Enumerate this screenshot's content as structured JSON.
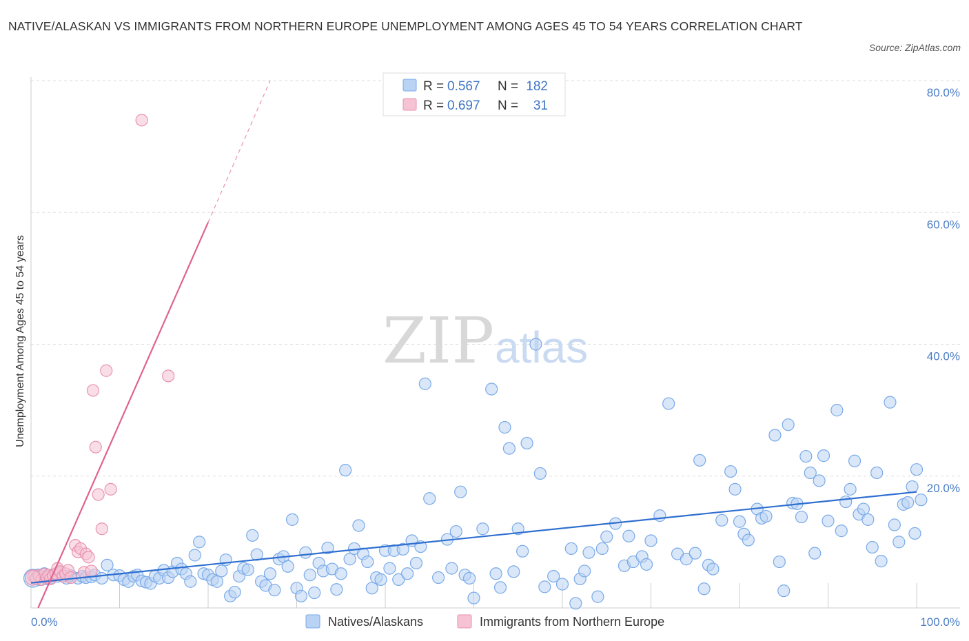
{
  "title": "NATIVE/ALASKAN VS IMMIGRANTS FROM NORTHERN EUROPE UNEMPLOYMENT AMONG AGES 45 TO 54 YEARS CORRELATION CHART",
  "source": "Source: ZipAtlas.com",
  "watermark": {
    "zip": "ZIP",
    "atlas": "atlas"
  },
  "colors": {
    "blue": "#7aaae8",
    "blue_fill": "#b9d3f4",
    "blue_line": "#2e6fd0",
    "pink": "#e892ae",
    "pink_fill": "#f6c3d4",
    "pink_line": "#e0628e",
    "grid": "#dddddd",
    "axis_text": "#4a7cc4"
  },
  "legend": {
    "items": [
      {
        "r_label": "R = ",
        "r_value": "0.567",
        "n_label": "N = ",
        "n_value": "182"
      },
      {
        "r_label": "R = ",
        "r_value": "0.697",
        "n_label": "N = ",
        "n_value": "31"
      }
    ]
  },
  "chart_data": {
    "type": "scatter",
    "title": "NATIVE/ALASKAN VS IMMIGRANTS FROM NORTHERN EUROPE UNEMPLOYMENT AMONG AGES 45 TO 54 YEARS CORRELATION CHART",
    "xlabel": "",
    "ylabel": "Unemployment Among Ages 45 to 54 years",
    "xlim": [
      0,
      100
    ],
    "ylim": [
      0,
      80
    ],
    "x_tick_labels": [
      "0.0%",
      "100.0%"
    ],
    "y_tick_labels": [
      "20.0%",
      "40.0%",
      "60.0%",
      "80.0%"
    ],
    "y_ticks": [
      20,
      40,
      60,
      80
    ],
    "grid": true,
    "legend_position": "top-center",
    "series": [
      {
        "name": "Natives/Alaskans",
        "color": "#7aaae8",
        "trend": {
          "x": [
            0,
            100
          ],
          "y": [
            3.8,
            17.6
          ],
          "style": "solid"
        },
        "points": [
          [
            0.3,
            4.8
          ],
          [
            0.5,
            4.5
          ],
          [
            0.8,
            5.0
          ],
          [
            1.0,
            4.3
          ],
          [
            1.2,
            4.7
          ],
          [
            1.5,
            5.2
          ],
          [
            1.8,
            4.4
          ],
          [
            2.0,
            4.9
          ],
          [
            2.3,
            4.6
          ],
          [
            2.6,
            5.1
          ],
          [
            3.0,
            4.8
          ],
          [
            3.4,
            5.3
          ],
          [
            4.0,
            4.5
          ],
          [
            4.5,
            4.9
          ],
          [
            5.3,
            4.5
          ],
          [
            5.8,
            4.8
          ],
          [
            6.2,
            4.6
          ],
          [
            6.8,
            4.7
          ],
          [
            7.2,
            5.0
          ],
          [
            8.0,
            4.5
          ],
          [
            8.6,
            6.5
          ],
          [
            9.3,
            5.0
          ],
          [
            10.0,
            4.9
          ],
          [
            10.5,
            4.3
          ],
          [
            11.0,
            4.0
          ],
          [
            11.6,
            4.8
          ],
          [
            12.0,
            5.0
          ],
          [
            12.5,
            4.1
          ],
          [
            13.0,
            3.9
          ],
          [
            13.5,
            3.7
          ],
          [
            14.0,
            4.8
          ],
          [
            14.5,
            4.5
          ],
          [
            15.0,
            5.7
          ],
          [
            15.5,
            4.6
          ],
          [
            16.0,
            5.5
          ],
          [
            16.5,
            6.8
          ],
          [
            17.0,
            5.9
          ],
          [
            17.5,
            5.2
          ],
          [
            18.0,
            4.0
          ],
          [
            18.5,
            8.0
          ],
          [
            19.0,
            10.0
          ],
          [
            19.5,
            5.2
          ],
          [
            20.0,
            5.0
          ],
          [
            20.5,
            4.3
          ],
          [
            21.0,
            4.0
          ],
          [
            21.5,
            5.6
          ],
          [
            22.0,
            7.3
          ],
          [
            22.5,
            1.8
          ],
          [
            23.0,
            2.4
          ],
          [
            23.5,
            4.8
          ],
          [
            24.0,
            6.0
          ],
          [
            24.5,
            5.8
          ],
          [
            25.0,
            11.0
          ],
          [
            25.5,
            8.1
          ],
          [
            26.0,
            4.0
          ],
          [
            26.5,
            3.4
          ],
          [
            27.0,
            5.2
          ],
          [
            27.5,
            2.7
          ],
          [
            28.0,
            7.4
          ],
          [
            28.5,
            7.8
          ],
          [
            29.0,
            6.3
          ],
          [
            29.5,
            13.4
          ],
          [
            30.0,
            3.0
          ],
          [
            30.5,
            1.8
          ],
          [
            31.0,
            8.4
          ],
          [
            31.5,
            5.0
          ],
          [
            32.0,
            2.3
          ],
          [
            32.5,
            6.8
          ],
          [
            33.0,
            5.6
          ],
          [
            33.5,
            9.1
          ],
          [
            34.0,
            5.9
          ],
          [
            34.5,
            2.8
          ],
          [
            35.0,
            5.2
          ],
          [
            35.5,
            20.9
          ],
          [
            36.0,
            7.4
          ],
          [
            36.5,
            9.0
          ],
          [
            37.0,
            12.5
          ],
          [
            37.5,
            8.2
          ],
          [
            38.0,
            7.0
          ],
          [
            38.5,
            3.0
          ],
          [
            39.0,
            4.6
          ],
          [
            39.5,
            4.3
          ],
          [
            40.0,
            8.7
          ],
          [
            40.5,
            6.0
          ],
          [
            41.0,
            8.7
          ],
          [
            41.5,
            4.3
          ],
          [
            42.0,
            8.9
          ],
          [
            42.5,
            5.2
          ],
          [
            43.0,
            10.2
          ],
          [
            43.5,
            6.8
          ],
          [
            44.0,
            9.3
          ],
          [
            44.5,
            34.0
          ],
          [
            45.0,
            16.6
          ],
          [
            46.0,
            4.6
          ],
          [
            47.0,
            10.4
          ],
          [
            47.5,
            6.0
          ],
          [
            48.0,
            11.6
          ],
          [
            48.5,
            17.6
          ],
          [
            49.0,
            5.0
          ],
          [
            49.5,
            4.5
          ],
          [
            50.0,
            1.5
          ],
          [
            51.0,
            12.0
          ],
          [
            52.0,
            33.2
          ],
          [
            52.5,
            5.2
          ],
          [
            53.0,
            3.1
          ],
          [
            53.5,
            27.4
          ],
          [
            54.0,
            24.2
          ],
          [
            54.5,
            5.5
          ],
          [
            55.0,
            12.0
          ],
          [
            55.5,
            8.6
          ],
          [
            56.0,
            25.0
          ],
          [
            57.0,
            40.0
          ],
          [
            57.5,
            20.4
          ],
          [
            58.0,
            3.2
          ],
          [
            59.0,
            4.8
          ],
          [
            60.0,
            3.6
          ],
          [
            61.0,
            9.0
          ],
          [
            61.5,
            0.7
          ],
          [
            62.0,
            4.4
          ],
          [
            62.5,
            5.6
          ],
          [
            63.0,
            8.4
          ],
          [
            64.0,
            1.7
          ],
          [
            64.5,
            9.0
          ],
          [
            65.0,
            10.8
          ],
          [
            66.0,
            12.8
          ],
          [
            67.0,
            6.4
          ],
          [
            67.5,
            10.9
          ],
          [
            68.0,
            7.0
          ],
          [
            69.0,
            7.8
          ],
          [
            69.5,
            6.6
          ],
          [
            70.0,
            10.2
          ],
          [
            71.0,
            14.0
          ],
          [
            72.0,
            31.0
          ],
          [
            73.0,
            8.2
          ],
          [
            74.0,
            7.4
          ],
          [
            75.0,
            8.3
          ],
          [
            75.5,
            22.4
          ],
          [
            76.0,
            2.9
          ],
          [
            76.5,
            6.5
          ],
          [
            77.0,
            5.9
          ],
          [
            78.0,
            13.3
          ],
          [
            79.0,
            20.7
          ],
          [
            79.5,
            18.0
          ],
          [
            80.0,
            13.1
          ],
          [
            80.5,
            11.2
          ],
          [
            81.0,
            10.3
          ],
          [
            82.0,
            15.0
          ],
          [
            82.5,
            13.6
          ],
          [
            83.0,
            13.9
          ],
          [
            84.0,
            26.2
          ],
          [
            84.5,
            7.0
          ],
          [
            85.0,
            2.6
          ],
          [
            85.5,
            27.8
          ],
          [
            86.0,
            15.9
          ],
          [
            86.5,
            15.8
          ],
          [
            87.0,
            13.8
          ],
          [
            87.5,
            23.0
          ],
          [
            88.0,
            20.5
          ],
          [
            88.5,
            8.3
          ],
          [
            89.0,
            19.3
          ],
          [
            89.5,
            23.1
          ],
          [
            90.0,
            13.2
          ],
          [
            91.0,
            30.0
          ],
          [
            91.5,
            11.7
          ],
          [
            92.0,
            16.1
          ],
          [
            92.5,
            18.0
          ],
          [
            93.0,
            22.3
          ],
          [
            93.5,
            14.2
          ],
          [
            94.0,
            15.0
          ],
          [
            94.5,
            13.4
          ],
          [
            95.0,
            9.2
          ],
          [
            95.5,
            20.5
          ],
          [
            96.0,
            7.1
          ],
          [
            97.0,
            31.2
          ],
          [
            97.5,
            12.6
          ],
          [
            98.0,
            10.0
          ],
          [
            98.5,
            15.7
          ],
          [
            99.0,
            16.0
          ],
          [
            99.5,
            18.4
          ],
          [
            99.8,
            11.3
          ],
          [
            100.0,
            21.0
          ],
          [
            100.5,
            16.4
          ]
        ]
      },
      {
        "name": "Immigrants from Northern Europe",
        "color": "#e892ae",
        "trend": {
          "x": [
            0.8,
            20
          ],
          "y": [
            0,
            58.5
          ],
          "style": "solid",
          "extension": {
            "x": [
              20,
              27
            ],
            "y": [
              58.5,
              80
            ],
            "style": "dashed"
          }
        },
        "points": [
          [
            0.3,
            4.8
          ],
          [
            0.6,
            4.5
          ],
          [
            0.9,
            4.9
          ],
          [
            1.2,
            4.3
          ],
          [
            1.5,
            5.1
          ],
          [
            1.8,
            4.6
          ],
          [
            2.0,
            5.0
          ],
          [
            2.2,
            4.4
          ],
          [
            2.5,
            4.9
          ],
          [
            2.8,
            5.2
          ],
          [
            3.0,
            6.0
          ],
          [
            3.3,
            5.5
          ],
          [
            3.6,
            4.8
          ],
          [
            3.9,
            5.2
          ],
          [
            4.2,
            5.7
          ],
          [
            4.5,
            4.6
          ],
          [
            5.0,
            9.5
          ],
          [
            5.3,
            8.5
          ],
          [
            5.6,
            9.0
          ],
          [
            6.0,
            5.4
          ],
          [
            6.2,
            8.2
          ],
          [
            6.5,
            7.7
          ],
          [
            6.8,
            5.6
          ],
          [
            7.0,
            33.0
          ],
          [
            7.3,
            24.4
          ],
          [
            7.6,
            17.2
          ],
          [
            8.0,
            12.0
          ],
          [
            8.5,
            36.0
          ],
          [
            9.0,
            18.0
          ],
          [
            12.5,
            74.0
          ],
          [
            15.5,
            35.2
          ]
        ]
      }
    ]
  },
  "bottom_legend": [
    {
      "label": "Natives/Alaskans"
    },
    {
      "label": "Immigrants from Northern Europe"
    }
  ]
}
